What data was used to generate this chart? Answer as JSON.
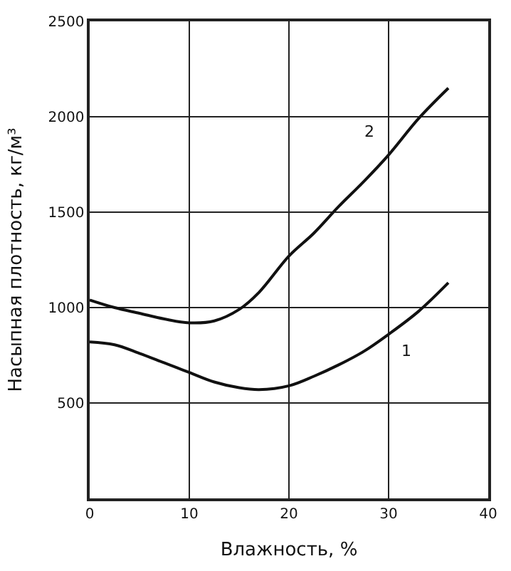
{
  "chart_data": {
    "type": "line",
    "xlabel": "Влажность, %",
    "ylabel": "Насыпная плотность, кг/м³",
    "x": [
      0,
      2.5,
      5,
      7.5,
      10,
      12.5,
      15,
      17,
      20,
      22.5,
      25,
      27.5,
      30,
      33,
      36
    ],
    "series": [
      {
        "name": "1",
        "color": "#111111",
        "values": [
          820,
          805,
          760,
          710,
          660,
          610,
          580,
          570,
          590,
          640,
          700,
          770,
          860,
          980,
          1130
        ]
      },
      {
        "name": "2",
        "color": "#111111",
        "values": [
          1040,
          1000,
          970,
          940,
          920,
          930,
          990,
          1080,
          1270,
          1390,
          1530,
          1660,
          1800,
          1990,
          2150
        ]
      }
    ],
    "xlim": [
      0,
      40
    ],
    "ylim": [
      0,
      2500
    ],
    "xticks": [
      0,
      10,
      20,
      30,
      40
    ],
    "yticks": [
      500,
      1000,
      1500,
      2000,
      2500
    ],
    "grid": true,
    "legend": false,
    "marker": "none",
    "line_style": "solid"
  }
}
